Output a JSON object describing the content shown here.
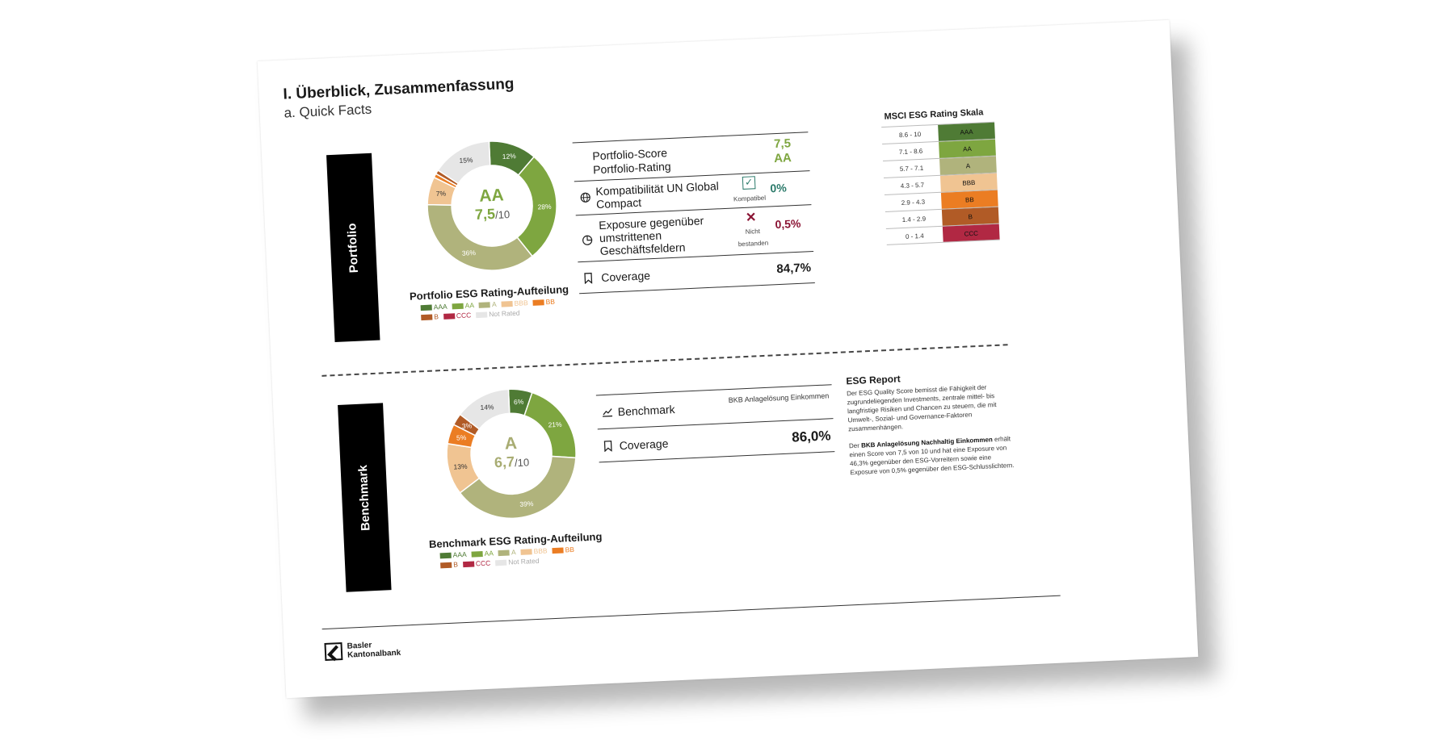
{
  "header": {
    "title": "I. Überblick, Zusammenfassung",
    "subtitle": "a. Quick Facts"
  },
  "sections": {
    "portfolio": "Portfolio",
    "benchmark": "Benchmark"
  },
  "colors": {
    "AAA": "#4f7b35",
    "AA": "#7ea640",
    "A": "#b0b37c",
    "BBB": "#f0c492",
    "BB": "#eb7d23",
    "B": "#b15b26",
    "CCC": "#b12843",
    "Not Rated": "#e6e6e6"
  },
  "portfolio": {
    "rating": "AA",
    "score": "7,5",
    "score_suffix": "/10",
    "distribution_title": "Portfolio ESG Rating-Aufteilung",
    "labels": [
      "12%",
      "28%",
      "36%",
      "7%",
      "",
      "",
      "15%"
    ]
  },
  "benchmark": {
    "rating": "A",
    "score": "6,7",
    "score_suffix": "/10",
    "distribution_title": "Benchmark ESG Rating-Aufteilung",
    "labels": [
      "6%",
      "21%",
      "39%",
      "13%",
      "5%",
      "3%",
      "14%"
    ]
  },
  "chart_data": [
    {
      "type": "pie",
      "title": "Portfolio ESG Rating-Aufteilung",
      "categories": [
        "AAA",
        "AA",
        "A",
        "BBB",
        "BB",
        "B",
        "CCC",
        "Not Rated"
      ],
      "values": [
        12,
        28,
        36,
        7,
        1,
        1,
        0,
        15
      ]
    },
    {
      "type": "pie",
      "title": "Benchmark ESG Rating-Aufteilung",
      "categories": [
        "AAA",
        "AA",
        "A",
        "BBB",
        "BB",
        "B",
        "CCC",
        "Not Rated"
      ],
      "values": [
        6,
        21,
        39,
        13,
        5,
        3,
        0,
        14
      ]
    }
  ],
  "legend": [
    "AAA",
    "AA",
    "A",
    "BBB",
    "BB",
    "B",
    "CCC",
    "Not Rated"
  ],
  "facts": {
    "score_label": "Portfolio-Score",
    "rating_label": "Portfolio-Rating",
    "score_value": "7,5",
    "rating_value": "AA",
    "ungc_label": "Kompatibilität UN Global Compact",
    "ungc_status": "Kompatibel",
    "ungc_value": "0%",
    "exposure_label": "Exposure gegenüber umstrittenen Geschäftsfeldern",
    "exposure_status_1": "Nicht",
    "exposure_status_2": "bestanden",
    "exposure_value": "0,5%",
    "coverage_label": "Coverage",
    "coverage_value": "84,7%",
    "check_symbol": "✓",
    "cross_symbol": "✕"
  },
  "benchmark_facts": {
    "benchmark_label": "Benchmark",
    "benchmark_value": "BKB Anlagelösung Einkommen",
    "coverage_label": "Coverage",
    "coverage_value": "86,0%"
  },
  "scale": {
    "title": "MSCI ESG Rating Skala",
    "rows": [
      {
        "range": "8.6 - 10",
        "rating": "AAA"
      },
      {
        "range": "7.1 - 8.6",
        "rating": "AA"
      },
      {
        "range": "5.7 - 7.1",
        "rating": "A"
      },
      {
        "range": "4.3 - 5.7",
        "rating": "BBB"
      },
      {
        "range": "2.9 - 4.3",
        "rating": "BB"
      },
      {
        "range": "1.4 - 2.9",
        "rating": "B"
      },
      {
        "range": "0 - 1.4",
        "rating": "CCC"
      }
    ]
  },
  "report": {
    "title": "ESG Report",
    "paragraph1": "Der ESG Quality Score bemisst die Fähigkeit der zugrundeliegenden Investments, zentrale mittel- bis langfristige Risiken und Chancen zu steuern, die mit Umwelt-, Sozial- und Governance-Faktoren zusammenhängen.",
    "p2_prefix": "Der ",
    "p2_bold": "BKB Anlagelösung Nachhaltig Einkommen",
    "p2_suffix": " erhält einen Score von 7,5 von 10 und hat eine Exposure von 46,3% gegenüber den ESG-Vorreitern sowie eine Exposure von 0,5% gegenüber den ESG-Schlusslichtern."
  },
  "footer": {
    "logo_line1": "Basler",
    "logo_line2": "Kantonalbank"
  }
}
